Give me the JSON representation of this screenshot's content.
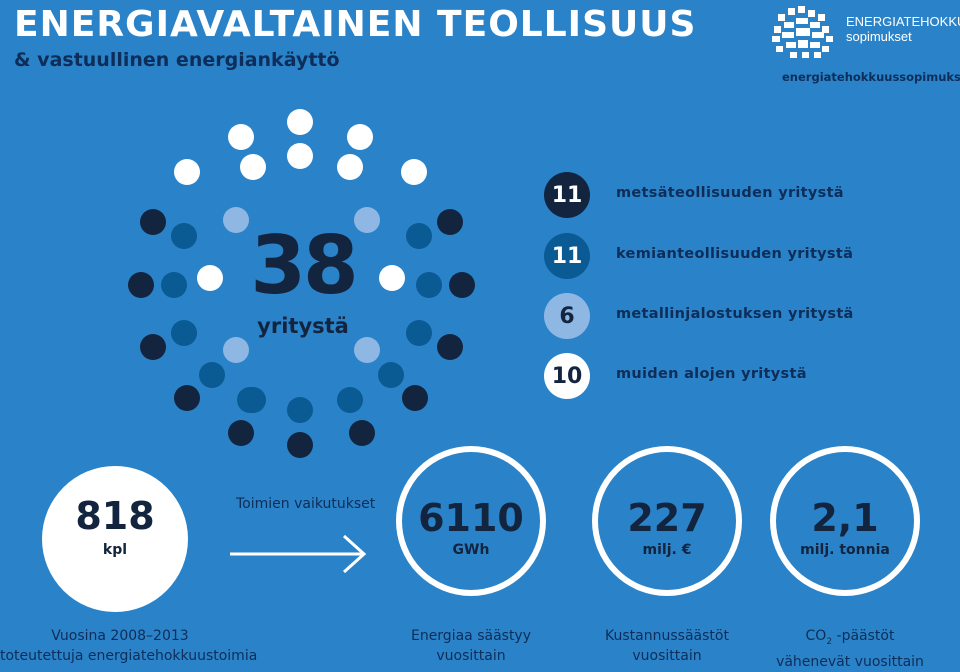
{
  "header": {
    "title": "ENERGIAVALTAINEN TEOLLISUUS",
    "subtitle": "& vastuullinen energiankäyttö"
  },
  "logo": {
    "line1": "ENERGIATEHOKKUUS-",
    "line2": "sopimukset",
    "icon": "interlocking-hands-logo",
    "url": "energiatehokkuussopimukset.fi"
  },
  "companies": {
    "total": "38",
    "total_label": "yritystä",
    "categories": [
      {
        "count": "11",
        "label": "metsäteollisuuden yritystä",
        "color": "#13243f"
      },
      {
        "count": "11",
        "label": "kemianteollisuuden yritystä",
        "color": "#0a5a93"
      },
      {
        "count": "6",
        "label": "metallinjalostuksen yritystä",
        "color": "#8fb7e4"
      },
      {
        "count": "10",
        "label": "muiden alojen yritystä",
        "color": "#ffffff"
      }
    ]
  },
  "measures": {
    "count": "818",
    "unit": "kpl",
    "caption_line1": "Vuosina 2008–2013",
    "caption_line2": "toteutettuja energiatehokkuustoimia"
  },
  "effects": {
    "heading": "Toimien vaikutukset",
    "arrow_icon": "arrow-right-icon",
    "items": [
      {
        "value": "6110",
        "unit": "GWh",
        "caption_line1": "Energiaa säästyy",
        "caption_line2": "vuosittain"
      },
      {
        "value": "227",
        "unit": "milj. €",
        "caption_line1": "Kustannussäästöt",
        "caption_line2": "vuosittain"
      },
      {
        "value": "2,1",
        "unit": "milj. tonnia",
        "caption_line1_pre": "CO",
        "caption_line1_sub": "2",
        "caption_line1_post": " -päästöt",
        "caption_line2": "vähenevät vuosittain"
      }
    ]
  }
}
